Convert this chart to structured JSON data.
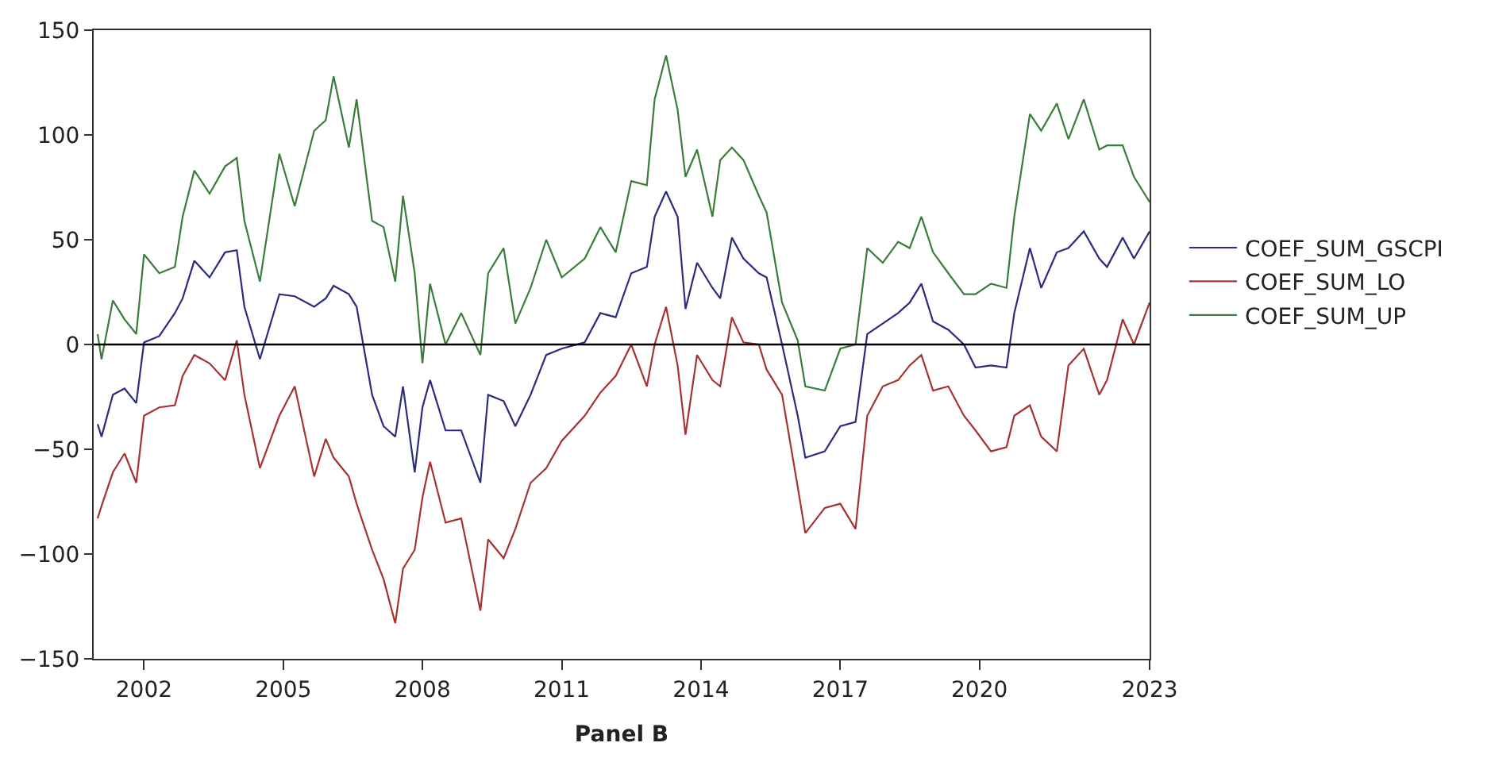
{
  "chart_data": {
    "type": "line",
    "xlabel": "Panel B",
    "x": [
      "2001-01",
      "2001-02",
      "2001-05",
      "2001-08",
      "2001-11",
      "2002-01",
      "2002-05",
      "2002-09",
      "2002-11",
      "2003-02",
      "2003-06",
      "2003-10",
      "2004-01",
      "2004-03",
      "2004-07",
      "2004-12",
      "2005-04",
      "2005-09",
      "2005-12",
      "2006-02",
      "2006-06",
      "2006-08",
      "2006-12",
      "2007-03",
      "2007-06",
      "2007-08",
      "2007-11",
      "2008-01",
      "2008-03",
      "2008-07",
      "2008-11",
      "2009-04",
      "2009-06",
      "2009-10",
      "2010-01",
      "2010-05",
      "2010-09",
      "2011-01",
      "2011-07",
      "2011-11",
      "2012-03",
      "2012-07",
      "2012-11",
      "2013-01",
      "2013-04",
      "2013-07",
      "2013-09",
      "2013-12",
      "2014-04",
      "2014-06",
      "2014-09",
      "2014-12",
      "2015-04",
      "2015-06",
      "2015-10",
      "2016-02",
      "2016-04",
      "2016-09",
      "2017-01",
      "2017-05",
      "2017-08",
      "2017-12",
      "2018-04",
      "2018-07",
      "2018-10",
      "2019-01",
      "2019-05",
      "2019-09",
      "2019-12",
      "2020-04",
      "2020-08",
      "2020-10",
      "2021-02",
      "2021-05",
      "2021-09",
      "2021-12",
      "2022-04",
      "2022-08",
      "2022-10",
      "2023-02",
      "2023-05",
      "2023-09"
    ],
    "series": [
      {
        "name": "COEF_SUM_GSCPI",
        "color": "#2b2b80",
        "values": [
          -38,
          -44,
          -24,
          -21,
          -28,
          1,
          4,
          15,
          22,
          40,
          32,
          44,
          45,
          18,
          -7,
          24,
          23,
          18,
          22,
          28,
          24,
          18,
          -24,
          -39,
          -44,
          -20,
          -61,
          -30,
          -17,
          -41,
          -41,
          -66,
          -24,
          -27,
          -39,
          -24,
          -5,
          -2,
          1,
          15,
          13,
          34,
          37,
          61,
          73,
          61,
          17,
          39,
          27,
          22,
          51,
          41,
          34,
          32,
          0,
          -34,
          -54,
          -51,
          -39,
          -37,
          5,
          10,
          15,
          20,
          29,
          11,
          7,
          0,
          -11,
          -10,
          -11,
          15,
          46,
          27,
          44,
          46,
          54,
          41,
          37,
          51,
          41,
          54
        ]
      },
      {
        "name": "COEF_SUM_LO",
        "color": "#a83232",
        "values": [
          -83,
          -77,
          -61,
          -52,
          -66,
          -34,
          -30,
          -29,
          -15,
          -5,
          -9,
          -17,
          2,
          -24,
          -59,
          -34,
          -20,
          -63,
          -45,
          -54,
          -63,
          -76,
          -98,
          -112,
          -133,
          -107,
          -98,
          -73,
          -56,
          -85,
          -83,
          -127,
          -93,
          -102,
          -88,
          -66,
          -59,
          -46,
          -34,
          -23,
          -15,
          0,
          -20,
          0,
          18,
          -10,
          -43,
          -5,
          -17,
          -20,
          13,
          1,
          0,
          -12,
          -24,
          -68,
          -90,
          -78,
          -76,
          -88,
          -34,
          -20,
          -17,
          -10,
          -5,
          -22,
          -20,
          -34,
          -41,
          -51,
          -49,
          -34,
          -29,
          -44,
          -51,
          -10,
          -2,
          -24,
          -17,
          12,
          0,
          20
        ]
      },
      {
        "name": "COEF_SUM_UP",
        "color": "#3a7d3a",
        "values": [
          5,
          -7,
          21,
          12,
          5,
          43,
          34,
          37,
          61,
          83,
          72,
          85,
          89,
          59,
          30,
          91,
          66,
          102,
          107,
          128,
          94,
          117,
          59,
          56,
          30,
          71,
          34,
          -9,
          29,
          0,
          15,
          -5,
          34,
          46,
          10,
          27,
          50,
          32,
          41,
          56,
          44,
          78,
          76,
          117,
          138,
          112,
          80,
          93,
          61,
          88,
          94,
          88,
          71,
          63,
          20,
          2,
          -20,
          -22,
          -2,
          0,
          46,
          39,
          49,
          46,
          61,
          44,
          34,
          24,
          24,
          29,
          27,
          61,
          110,
          102,
          115,
          98,
          117,
          93,
          95,
          95,
          80,
          68
        ]
      }
    ],
    "xlim": [
      "2000-12",
      "2023-09"
    ],
    "xticks": [
      {
        "value": "2002-01",
        "label": "2002"
      },
      {
        "value": "2005-01",
        "label": "2005"
      },
      {
        "value": "2008-01",
        "label": "2008"
      },
      {
        "value": "2011-01",
        "label": "2011"
      },
      {
        "value": "2014-01",
        "label": "2014"
      },
      {
        "value": "2017-01",
        "label": "2017"
      },
      {
        "value": "2020-01",
        "label": "2020"
      },
      {
        "value": "2023-09",
        "label": "2023"
      }
    ],
    "ylim": [
      -150,
      150
    ],
    "yticks": [
      -150,
      -100,
      -50,
      0,
      50,
      100,
      150
    ],
    "ref_lines": [
      {
        "axis": "y",
        "value": 0,
        "color": "#000000"
      }
    ],
    "legend": "right",
    "marker": "none",
    "line_style": "solid"
  }
}
